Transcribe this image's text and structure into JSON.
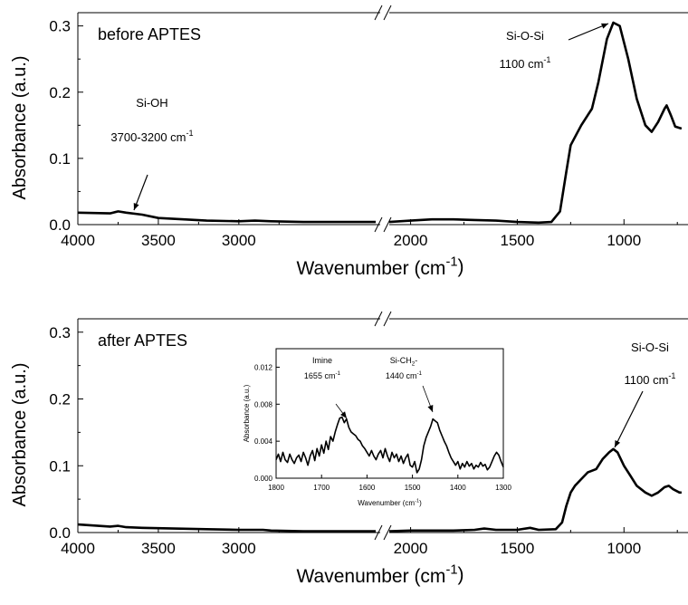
{
  "chart_data": [
    {
      "type": "line",
      "panel": "top",
      "title": "",
      "panel_label": "before APTES",
      "xlabel": "Wavenumber (cm",
      "xlabel_sup": "-1",
      "xlabel_close": ")",
      "ylabel": "Absorbance (a.u.)",
      "ylim": [
        0,
        0.32
      ],
      "x_axis": "reversed, broken between ~2150 and ~2100",
      "x_ticks": [
        "4000",
        "3500",
        "3000",
        "2000",
        "1500",
        "1000"
      ],
      "y_ticks": [
        "0.0",
        "0.1",
        "0.2",
        "0.3"
      ],
      "annotations": [
        {
          "text": "Si-OH",
          "x": 3700,
          "y": 0.18
        },
        {
          "text": "3700-3200 cm",
          "sup": "-1",
          "x": 3700,
          "y": 0.13
        },
        {
          "text": "Si-O-Si",
          "x": 1100,
          "y": 0.28
        },
        {
          "text": "1100 cm",
          "sup": "-1",
          "x": 1100,
          "y": 0.24
        }
      ],
      "series": [
        {
          "values": [
            [
              4000,
              0.018
            ],
            [
              3800,
              0.017
            ],
            [
              3750,
              0.02
            ],
            [
              3700,
              0.018
            ],
            [
              3600,
              0.015
            ],
            [
              3500,
              0.01
            ],
            [
              3200,
              0.006
            ],
            [
              3000,
              0.005
            ],
            [
              2900,
              0.006
            ],
            [
              2800,
              0.005
            ],
            [
              2600,
              0.004
            ],
            [
              2150,
              0.004
            ],
            [
              2100,
              0.004
            ],
            [
              2000,
              0.006
            ],
            [
              1900,
              0.008
            ],
            [
              1800,
              0.008
            ],
            [
              1700,
              0.007
            ],
            [
              1600,
              0.006
            ],
            [
              1500,
              0.004
            ],
            [
              1400,
              0.003
            ],
            [
              1340,
              0.004
            ],
            [
              1300,
              0.02
            ],
            [
              1270,
              0.08
            ],
            [
              1250,
              0.12
            ],
            [
              1200,
              0.15
            ],
            [
              1150,
              0.175
            ],
            [
              1120,
              0.215
            ],
            [
              1080,
              0.28
            ],
            [
              1050,
              0.305
            ],
            [
              1020,
              0.3
            ],
            [
              980,
              0.25
            ],
            [
              940,
              0.19
            ],
            [
              900,
              0.15
            ],
            [
              870,
              0.14
            ],
            [
              840,
              0.155
            ],
            [
              810,
              0.175
            ],
            [
              800,
              0.18
            ],
            [
              780,
              0.165
            ],
            [
              760,
              0.148
            ],
            [
              730,
              0.145
            ]
          ]
        }
      ]
    },
    {
      "type": "line",
      "panel": "bottom",
      "title": "",
      "panel_label": "after APTES",
      "xlabel": "Wavenumber (cm",
      "xlabel_sup": "-1",
      "xlabel_close": ")",
      "ylabel": "Absorbance (a.u.)",
      "ylim": [
        0,
        0.32
      ],
      "x_axis": "reversed, broken between ~2150 and ~2100",
      "x_ticks": [
        "4000",
        "3500",
        "3000",
        "2000",
        "1500",
        "1000"
      ],
      "y_ticks": [
        "0.0",
        "0.1",
        "0.2",
        "0.3"
      ],
      "annotations": [
        {
          "text": "Si-O-Si",
          "x": 840,
          "y": 0.27
        },
        {
          "text": "1100 cm",
          "sup": "-1",
          "x": 840,
          "y": 0.225
        }
      ],
      "series": [
        {
          "values": [
            [
              4000,
              0.012
            ],
            [
              3800,
              0.009
            ],
            [
              3750,
              0.01
            ],
            [
              3700,
              0.008
            ],
            [
              3600,
              0.007
            ],
            [
              3400,
              0.006
            ],
            [
              3200,
              0.005
            ],
            [
              3000,
              0.004
            ],
            [
              2850,
              0.004
            ],
            [
              2800,
              0.003
            ],
            [
              2600,
              0.002
            ],
            [
              2150,
              0.002
            ],
            [
              2100,
              0.002
            ],
            [
              2000,
              0.003
            ],
            [
              1900,
              0.003
            ],
            [
              1800,
              0.003
            ],
            [
              1700,
              0.004
            ],
            [
              1655,
              0.006
            ],
            [
              1600,
              0.004
            ],
            [
              1500,
              0.004
            ],
            [
              1440,
              0.007
            ],
            [
              1400,
              0.004
            ],
            [
              1320,
              0.005
            ],
            [
              1290,
              0.015
            ],
            [
              1270,
              0.04
            ],
            [
              1250,
              0.06
            ],
            [
              1230,
              0.07
            ],
            [
              1200,
              0.08
            ],
            [
              1170,
              0.09
            ],
            [
              1130,
              0.095
            ],
            [
              1100,
              0.11
            ],
            [
              1070,
              0.12
            ],
            [
              1050,
              0.125
            ],
            [
              1030,
              0.12
            ],
            [
              1000,
              0.1
            ],
            [
              970,
              0.085
            ],
            [
              940,
              0.07
            ],
            [
              900,
              0.06
            ],
            [
              870,
              0.055
            ],
            [
              840,
              0.06
            ],
            [
              810,
              0.068
            ],
            [
              790,
              0.07
            ],
            [
              770,
              0.065
            ],
            [
              740,
              0.06
            ],
            [
              730,
              0.06
            ]
          ]
        }
      ]
    },
    {
      "type": "line",
      "panel": "inset",
      "title": "",
      "xlabel": "Wavenumber (cm",
      "xlabel_sup": "-1",
      "xlabel_close": ")",
      "ylabel": "Absorbance (a.u.)",
      "xlim": [
        1800,
        1300
      ],
      "ylim": [
        0,
        0.014
      ],
      "x_ticks": [
        "1800",
        "1700",
        "1600",
        "1500",
        "1400",
        "1300"
      ],
      "y_ticks": [
        "0.000",
        "0.004",
        "0.008",
        "0.012"
      ],
      "annotations": [
        {
          "text": "Imine",
          "x": 1720,
          "y": 0.0125
        },
        {
          "text": "1655 cm",
          "sup": "-1",
          "x": 1720,
          "y": 0.0105
        },
        {
          "text": "Si-CH",
          "sub": "2",
          "tail": "-",
          "x": 1530,
          "y": 0.0125
        },
        {
          "text": "1440 cm",
          "sup": "-1",
          "x": 1530,
          "y": 0.0105
        }
      ],
      "series": [
        {
          "values": [
            [
              1800,
              0.002
            ],
            [
              1795,
              0.0026
            ],
            [
              1790,
              0.0018
            ],
            [
              1785,
              0.0028
            ],
            [
              1780,
              0.002
            ],
            [
              1775,
              0.0017
            ],
            [
              1770,
              0.0026
            ],
            [
              1765,
              0.002
            ],
            [
              1760,
              0.0016
            ],
            [
              1755,
              0.0022
            ],
            [
              1750,
              0.0025
            ],
            [
              1745,
              0.0018
            ],
            [
              1740,
              0.0028
            ],
            [
              1735,
              0.0022
            ],
            [
              1730,
              0.0014
            ],
            [
              1725,
              0.0024
            ],
            [
              1720,
              0.003
            ],
            [
              1715,
              0.0019
            ],
            [
              1710,
              0.0032
            ],
            [
              1705,
              0.0024
            ],
            [
              1700,
              0.0036
            ],
            [
              1695,
              0.0027
            ],
            [
              1690,
              0.004
            ],
            [
              1685,
              0.0031
            ],
            [
              1680,
              0.0045
            ],
            [
              1675,
              0.004
            ],
            [
              1670,
              0.005
            ],
            [
              1665,
              0.0058
            ],
            [
              1660,
              0.0065
            ],
            [
              1655,
              0.0066
            ],
            [
              1650,
              0.006
            ],
            [
              1645,
              0.0064
            ],
            [
              1640,
              0.0055
            ],
            [
              1635,
              0.005
            ],
            [
              1630,
              0.0048
            ],
            [
              1625,
              0.0046
            ],
            [
              1620,
              0.0042
            ],
            [
              1615,
              0.004
            ],
            [
              1610,
              0.0035
            ],
            [
              1605,
              0.0032
            ],
            [
              1600,
              0.0028
            ],
            [
              1595,
              0.0024
            ],
            [
              1590,
              0.003
            ],
            [
              1585,
              0.0024
            ],
            [
              1580,
              0.002
            ],
            [
              1575,
              0.0026
            ],
            [
              1570,
              0.003
            ],
            [
              1565,
              0.0022
            ],
            [
              1560,
              0.0032
            ],
            [
              1555,
              0.0024
            ],
            [
              1550,
              0.0018
            ],
            [
              1545,
              0.0028
            ],
            [
              1540,
              0.0022
            ],
            [
              1535,
              0.0026
            ],
            [
              1530,
              0.0018
            ],
            [
              1525,
              0.0024
            ],
            [
              1520,
              0.0016
            ],
            [
              1515,
              0.0022
            ],
            [
              1510,
              0.0026
            ],
            [
              1505,
              0.0014
            ],
            [
              1500,
              0.0012
            ],
            [
              1495,
              0.0018
            ],
            [
              1490,
              0.0006
            ],
            [
              1485,
              0.001
            ],
            [
              1480,
              0.002
            ],
            [
              1475,
              0.0035
            ],
            [
              1470,
              0.0044
            ],
            [
              1465,
              0.005
            ],
            [
              1460,
              0.0056
            ],
            [
              1455,
              0.0064
            ],
            [
              1450,
              0.0062
            ],
            [
              1445,
              0.006
            ],
            [
              1440,
              0.0052
            ],
            [
              1435,
              0.0046
            ],
            [
              1430,
              0.004
            ],
            [
              1425,
              0.0035
            ],
            [
              1420,
              0.0028
            ],
            [
              1415,
              0.0022
            ],
            [
              1410,
              0.0018
            ],
            [
              1405,
              0.0014
            ],
            [
              1400,
              0.0018
            ],
            [
              1395,
              0.001
            ],
            [
              1390,
              0.0016
            ],
            [
              1385,
              0.0012
            ],
            [
              1380,
              0.0018
            ],
            [
              1375,
              0.0013
            ],
            [
              1370,
              0.0016
            ],
            [
              1365,
              0.001
            ],
            [
              1360,
              0.0014
            ],
            [
              1355,
              0.0012
            ],
            [
              1350,
              0.0017
            ],
            [
              1345,
              0.0013
            ],
            [
              1340,
              0.0015
            ],
            [
              1335,
              0.0009
            ],
            [
              1330,
              0.0012
            ],
            [
              1325,
              0.0018
            ],
            [
              1320,
              0.0024
            ],
            [
              1315,
              0.0028
            ],
            [
              1310,
              0.0025
            ],
            [
              1305,
              0.0018
            ],
            [
              1300,
              0.0012
            ]
          ]
        }
      ]
    }
  ]
}
